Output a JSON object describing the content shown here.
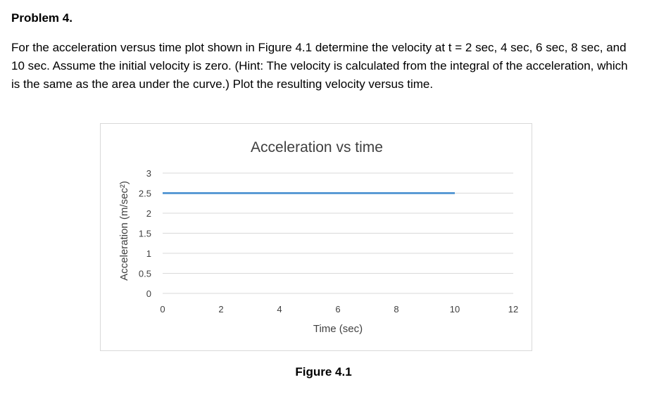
{
  "document": {
    "heading": "Problem 4.",
    "body": "For the acceleration versus time plot shown in Figure 4.1 determine the velocity at t = 2 sec, 4 sec, 6 sec, 8 sec, and 10 sec.  Assume the initial velocity is zero.  (Hint:  The velocity is calculated from the integral of the acceleration, which is the same as the area under the curve.)   Plot the resulting velocity versus time.",
    "caption": "Figure 4.1"
  },
  "chart_data": {
    "type": "line",
    "title": "Acceleration vs time",
    "xlabel": "Time (sec)",
    "ylabel": "Acceleration (m/sec²)",
    "xlim": [
      0,
      12
    ],
    "ylim": [
      0,
      3
    ],
    "x_ticks": [
      "0",
      "2",
      "4",
      "6",
      "8",
      "10",
      "12"
    ],
    "y_ticks": [
      "0",
      "0.5",
      "1",
      "1.5",
      "2",
      "2.5",
      "3"
    ],
    "grid": "horizontal",
    "legend": "none",
    "series": [
      {
        "x": [
          0,
          10
        ],
        "values": [
          2.5,
          2.5
        ],
        "color": "#5b9bd5"
      }
    ],
    "colors": {
      "grid": "#d9d9d9",
      "text": "#404040",
      "line": "#5b9bd5"
    }
  }
}
